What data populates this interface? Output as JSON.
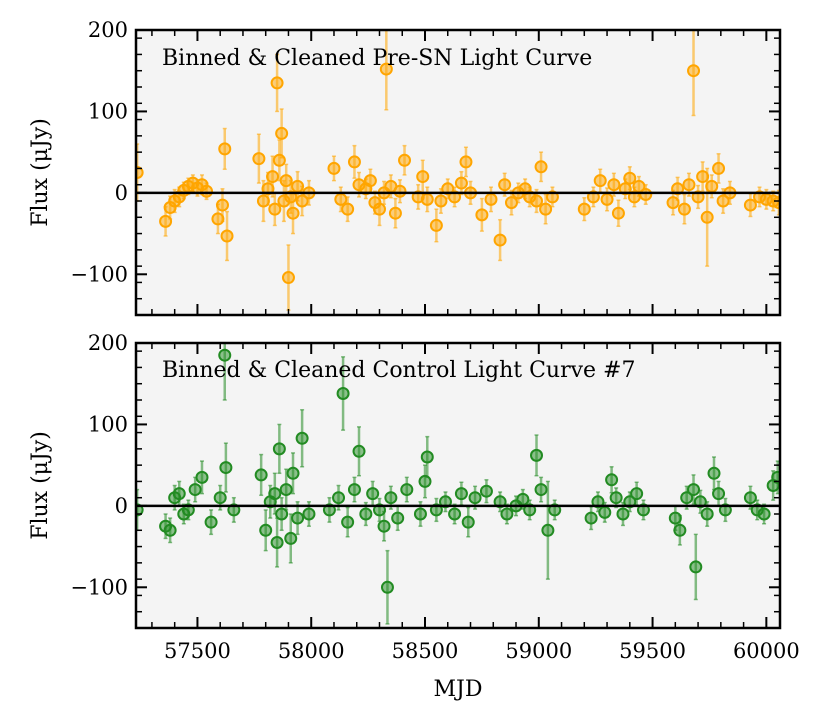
{
  "colors": {
    "panel_background": "#f4f4f4",
    "presn": "#ffa500",
    "control": "#228b22",
    "zero_line": "#000000"
  },
  "chart_data": [
    {
      "type": "scatter",
      "id": "presn",
      "title": "Binned & Cleaned Pre-SN Light Curve",
      "ylabel": "Flux (μJy)",
      "xlabel": "",
      "xlim": [
        57230,
        60060
      ],
      "ylim": [
        -150,
        200
      ],
      "xticks": [
        57500,
        58000,
        58500,
        59000,
        59500,
        60000
      ],
      "yticks": [
        -100,
        0,
        100,
        200
      ],
      "ytick_labels": [
        "−100",
        "0",
        "100",
        "200"
      ],
      "color": "#ffa500",
      "points": [
        {
          "x": 57235,
          "y": 25,
          "e": 35
        },
        {
          "x": 57360,
          "y": -35,
          "e": 18
        },
        {
          "x": 57380,
          "y": -18,
          "e": 14
        },
        {
          "x": 57400,
          "y": -10,
          "e": 14
        },
        {
          "x": 57420,
          "y": -5,
          "e": 12
        },
        {
          "x": 57440,
          "y": 3,
          "e": 10
        },
        {
          "x": 57460,
          "y": 8,
          "e": 10
        },
        {
          "x": 57480,
          "y": 12,
          "e": 10
        },
        {
          "x": 57500,
          "y": 6,
          "e": 10
        },
        {
          "x": 57520,
          "y": 10,
          "e": 12
        },
        {
          "x": 57540,
          "y": 2,
          "e": 10
        },
        {
          "x": 57590,
          "y": -32,
          "e": 18
        },
        {
          "x": 57610,
          "y": -15,
          "e": 20
        },
        {
          "x": 57620,
          "y": 54,
          "e": 25
        },
        {
          "x": 57630,
          "y": -53,
          "e": 30
        },
        {
          "x": 57770,
          "y": 42,
          "e": 30
        },
        {
          "x": 57790,
          "y": -10,
          "e": 25
        },
        {
          "x": 57810,
          "y": 5,
          "e": 20
        },
        {
          "x": 57830,
          "y": 20,
          "e": 25
        },
        {
          "x": 57840,
          "y": -20,
          "e": 20
        },
        {
          "x": 57850,
          "y": 135,
          "e": 35
        },
        {
          "x": 57860,
          "y": 40,
          "e": 25
        },
        {
          "x": 57870,
          "y": 73,
          "e": 30
        },
        {
          "x": 57880,
          "y": -10,
          "e": 25
        },
        {
          "x": 57890,
          "y": 15,
          "e": 20
        },
        {
          "x": 57900,
          "y": -104,
          "e": 40
        },
        {
          "x": 57910,
          "y": -5,
          "e": 20
        },
        {
          "x": 57920,
          "y": -25,
          "e": 25
        },
        {
          "x": 57940,
          "y": 8,
          "e": 18
        },
        {
          "x": 57960,
          "y": -10,
          "e": 18
        },
        {
          "x": 57990,
          "y": 0,
          "e": 15
        },
        {
          "x": 58100,
          "y": 30,
          "e": 15
        },
        {
          "x": 58130,
          "y": -8,
          "e": 15
        },
        {
          "x": 58160,
          "y": -20,
          "e": 15
        },
        {
          "x": 58190,
          "y": 38,
          "e": 20
        },
        {
          "x": 58210,
          "y": 10,
          "e": 15
        },
        {
          "x": 58240,
          "y": 5,
          "e": 12
        },
        {
          "x": 58260,
          "y": 15,
          "e": 14
        },
        {
          "x": 58280,
          "y": -12,
          "e": 14
        },
        {
          "x": 58300,
          "y": -20,
          "e": 20
        },
        {
          "x": 58320,
          "y": 0,
          "e": 14
        },
        {
          "x": 58330,
          "y": 152,
          "e": 50
        },
        {
          "x": 58350,
          "y": 8,
          "e": 14
        },
        {
          "x": 58370,
          "y": -25,
          "e": 18
        },
        {
          "x": 58390,
          "y": 2,
          "e": 14
        },
        {
          "x": 58410,
          "y": 40,
          "e": 18
        },
        {
          "x": 58470,
          "y": -5,
          "e": 15
        },
        {
          "x": 58490,
          "y": 20,
          "e": 20
        },
        {
          "x": 58510,
          "y": -8,
          "e": 15
        },
        {
          "x": 58550,
          "y": -40,
          "e": 20
        },
        {
          "x": 58570,
          "y": -10,
          "e": 15
        },
        {
          "x": 58600,
          "y": 5,
          "e": 12
        },
        {
          "x": 58630,
          "y": -5,
          "e": 12
        },
        {
          "x": 58660,
          "y": 12,
          "e": 14
        },
        {
          "x": 58680,
          "y": 38,
          "e": 18
        },
        {
          "x": 58700,
          "y": 0,
          "e": 14
        },
        {
          "x": 58750,
          "y": -27,
          "e": 20
        },
        {
          "x": 58790,
          "y": -8,
          "e": 15
        },
        {
          "x": 58830,
          "y": -58,
          "e": 25
        },
        {
          "x": 58850,
          "y": 10,
          "e": 14
        },
        {
          "x": 58880,
          "y": -12,
          "e": 15
        },
        {
          "x": 58910,
          "y": 0,
          "e": 12
        },
        {
          "x": 58940,
          "y": 5,
          "e": 12
        },
        {
          "x": 58960,
          "y": -5,
          "e": 12
        },
        {
          "x": 58990,
          "y": -10,
          "e": 14
        },
        {
          "x": 59010,
          "y": 32,
          "e": 18
        },
        {
          "x": 59030,
          "y": -20,
          "e": 18
        },
        {
          "x": 59060,
          "y": -5,
          "e": 12
        },
        {
          "x": 59200,
          "y": -20,
          "e": 14
        },
        {
          "x": 59240,
          "y": -5,
          "e": 12
        },
        {
          "x": 59270,
          "y": 15,
          "e": 14
        },
        {
          "x": 59300,
          "y": -8,
          "e": 14
        },
        {
          "x": 59330,
          "y": 10,
          "e": 14
        },
        {
          "x": 59350,
          "y": -25,
          "e": 16
        },
        {
          "x": 59380,
          "y": 5,
          "e": 12
        },
        {
          "x": 59400,
          "y": 18,
          "e": 14
        },
        {
          "x": 59420,
          "y": -5,
          "e": 12
        },
        {
          "x": 59440,
          "y": 8,
          "e": 12
        },
        {
          "x": 59470,
          "y": -2,
          "e": 12
        },
        {
          "x": 59590,
          "y": -12,
          "e": 15
        },
        {
          "x": 59610,
          "y": 5,
          "e": 14
        },
        {
          "x": 59640,
          "y": -20,
          "e": 18
        },
        {
          "x": 59660,
          "y": 10,
          "e": 14
        },
        {
          "x": 59680,
          "y": 150,
          "e": 55
        },
        {
          "x": 59700,
          "y": -5,
          "e": 14
        },
        {
          "x": 59720,
          "y": 20,
          "e": 18
        },
        {
          "x": 59740,
          "y": -30,
          "e": 60
        },
        {
          "x": 59760,
          "y": 8,
          "e": 14
        },
        {
          "x": 59790,
          "y": 30,
          "e": 18
        },
        {
          "x": 59810,
          "y": -10,
          "e": 15
        },
        {
          "x": 59840,
          "y": 0,
          "e": 14
        },
        {
          "x": 59930,
          "y": -15,
          "e": 14
        },
        {
          "x": 59970,
          "y": -5,
          "e": 12
        },
        {
          "x": 60000,
          "y": -8,
          "e": 12
        },
        {
          "x": 60030,
          "y": -10,
          "e": 12
        },
        {
          "x": 60055,
          "y": -12,
          "e": 15
        }
      ]
    },
    {
      "type": "scatter",
      "id": "control",
      "title": "Binned & Cleaned Control Light Curve #7",
      "ylabel": "Flux (μJy)",
      "xlabel": "MJD",
      "xlim": [
        57230,
        60060
      ],
      "ylim": [
        -150,
        200
      ],
      "xticks": [
        57500,
        58000,
        58500,
        59000,
        59500,
        60000
      ],
      "xtick_labels": [
        "57500",
        "58000",
        "58500",
        "59000",
        "59500",
        "60000"
      ],
      "yticks": [
        -100,
        0,
        100,
        200
      ],
      "ytick_labels": [
        "−100",
        "0",
        "100",
        "200"
      ],
      "color": "#228b22",
      "points": [
        {
          "x": 57235,
          "y": -5,
          "e": 25
        },
        {
          "x": 57360,
          "y": -25,
          "e": 15
        },
        {
          "x": 57380,
          "y": -30,
          "e": 15
        },
        {
          "x": 57400,
          "y": 10,
          "e": 15
        },
        {
          "x": 57420,
          "y": 15,
          "e": 15
        },
        {
          "x": 57440,
          "y": -10,
          "e": 12
        },
        {
          "x": 57460,
          "y": -5,
          "e": 12
        },
        {
          "x": 57490,
          "y": 20,
          "e": 15
        },
        {
          "x": 57520,
          "y": 35,
          "e": 20
        },
        {
          "x": 57560,
          "y": -20,
          "e": 15
        },
        {
          "x": 57600,
          "y": 10,
          "e": 15
        },
        {
          "x": 57620,
          "y": 185,
          "e": 55
        },
        {
          "x": 57625,
          "y": 47,
          "e": 30
        },
        {
          "x": 57660,
          "y": -5,
          "e": 15
        },
        {
          "x": 57780,
          "y": 38,
          "e": 25
        },
        {
          "x": 57800,
          "y": -30,
          "e": 25
        },
        {
          "x": 57820,
          "y": 5,
          "e": 20
        },
        {
          "x": 57840,
          "y": 15,
          "e": 25
        },
        {
          "x": 57850,
          "y": -45,
          "e": 30
        },
        {
          "x": 57860,
          "y": 70,
          "e": 30
        },
        {
          "x": 57870,
          "y": -10,
          "e": 20
        },
        {
          "x": 57890,
          "y": 20,
          "e": 25
        },
        {
          "x": 57910,
          "y": -40,
          "e": 30
        },
        {
          "x": 57920,
          "y": 40,
          "e": 25
        },
        {
          "x": 57940,
          "y": -15,
          "e": 20
        },
        {
          "x": 57960,
          "y": 83,
          "e": 35
        },
        {
          "x": 57990,
          "y": -10,
          "e": 15
        },
        {
          "x": 58080,
          "y": -5,
          "e": 15
        },
        {
          "x": 58120,
          "y": 10,
          "e": 15
        },
        {
          "x": 58140,
          "y": 138,
          "e": 45
        },
        {
          "x": 58160,
          "y": -20,
          "e": 18
        },
        {
          "x": 58190,
          "y": 20,
          "e": 15
        },
        {
          "x": 58210,
          "y": 67,
          "e": 30
        },
        {
          "x": 58240,
          "y": -10,
          "e": 14
        },
        {
          "x": 58270,
          "y": 15,
          "e": 15
        },
        {
          "x": 58300,
          "y": -5,
          "e": 14
        },
        {
          "x": 58320,
          "y": -25,
          "e": 18
        },
        {
          "x": 58335,
          "y": -100,
          "e": 45
        },
        {
          "x": 58350,
          "y": 10,
          "e": 14
        },
        {
          "x": 58380,
          "y": -15,
          "e": 15
        },
        {
          "x": 58420,
          "y": 20,
          "e": 15
        },
        {
          "x": 58480,
          "y": -10,
          "e": 15
        },
        {
          "x": 58500,
          "y": 30,
          "e": 20
        },
        {
          "x": 58510,
          "y": 60,
          "e": 25
        },
        {
          "x": 58550,
          "y": -5,
          "e": 14
        },
        {
          "x": 58590,
          "y": 5,
          "e": 12
        },
        {
          "x": 58630,
          "y": -10,
          "e": 12
        },
        {
          "x": 58660,
          "y": 15,
          "e": 14
        },
        {
          "x": 58690,
          "y": -20,
          "e": 18
        },
        {
          "x": 58720,
          "y": 10,
          "e": 14
        },
        {
          "x": 58770,
          "y": 18,
          "e": 14
        },
        {
          "x": 58830,
          "y": 5,
          "e": 12
        },
        {
          "x": 58860,
          "y": -10,
          "e": 12
        },
        {
          "x": 58900,
          "y": 0,
          "e": 12
        },
        {
          "x": 58930,
          "y": 8,
          "e": 12
        },
        {
          "x": 58960,
          "y": -5,
          "e": 12
        },
        {
          "x": 58990,
          "y": 62,
          "e": 25
        },
        {
          "x": 59010,
          "y": 20,
          "e": 15
        },
        {
          "x": 59040,
          "y": -30,
          "e": 60
        },
        {
          "x": 59070,
          "y": -5,
          "e": 12
        },
        {
          "x": 59230,
          "y": -15,
          "e": 14
        },
        {
          "x": 59260,
          "y": 5,
          "e": 12
        },
        {
          "x": 59290,
          "y": -8,
          "e": 12
        },
        {
          "x": 59320,
          "y": 32,
          "e": 16
        },
        {
          "x": 59340,
          "y": 10,
          "e": 12
        },
        {
          "x": 59370,
          "y": -10,
          "e": 14
        },
        {
          "x": 59400,
          "y": 5,
          "e": 12
        },
        {
          "x": 59430,
          "y": 15,
          "e": 14
        },
        {
          "x": 59460,
          "y": -5,
          "e": 12
        },
        {
          "x": 59600,
          "y": -15,
          "e": 15
        },
        {
          "x": 59620,
          "y": -30,
          "e": 18
        },
        {
          "x": 59650,
          "y": 10,
          "e": 14
        },
        {
          "x": 59680,
          "y": 20,
          "e": 18
        },
        {
          "x": 59690,
          "y": -75,
          "e": 40
        },
        {
          "x": 59710,
          "y": 5,
          "e": 14
        },
        {
          "x": 59740,
          "y": -10,
          "e": 15
        },
        {
          "x": 59770,
          "y": 40,
          "e": 20
        },
        {
          "x": 59790,
          "y": 15,
          "e": 15
        },
        {
          "x": 59820,
          "y": -5,
          "e": 14
        },
        {
          "x": 59930,
          "y": 10,
          "e": 14
        },
        {
          "x": 59960,
          "y": -5,
          "e": 12
        },
        {
          "x": 59990,
          "y": -10,
          "e": 12
        },
        {
          "x": 60030,
          "y": 25,
          "e": 18
        },
        {
          "x": 60050,
          "y": 35,
          "e": 20
        }
      ]
    }
  ]
}
